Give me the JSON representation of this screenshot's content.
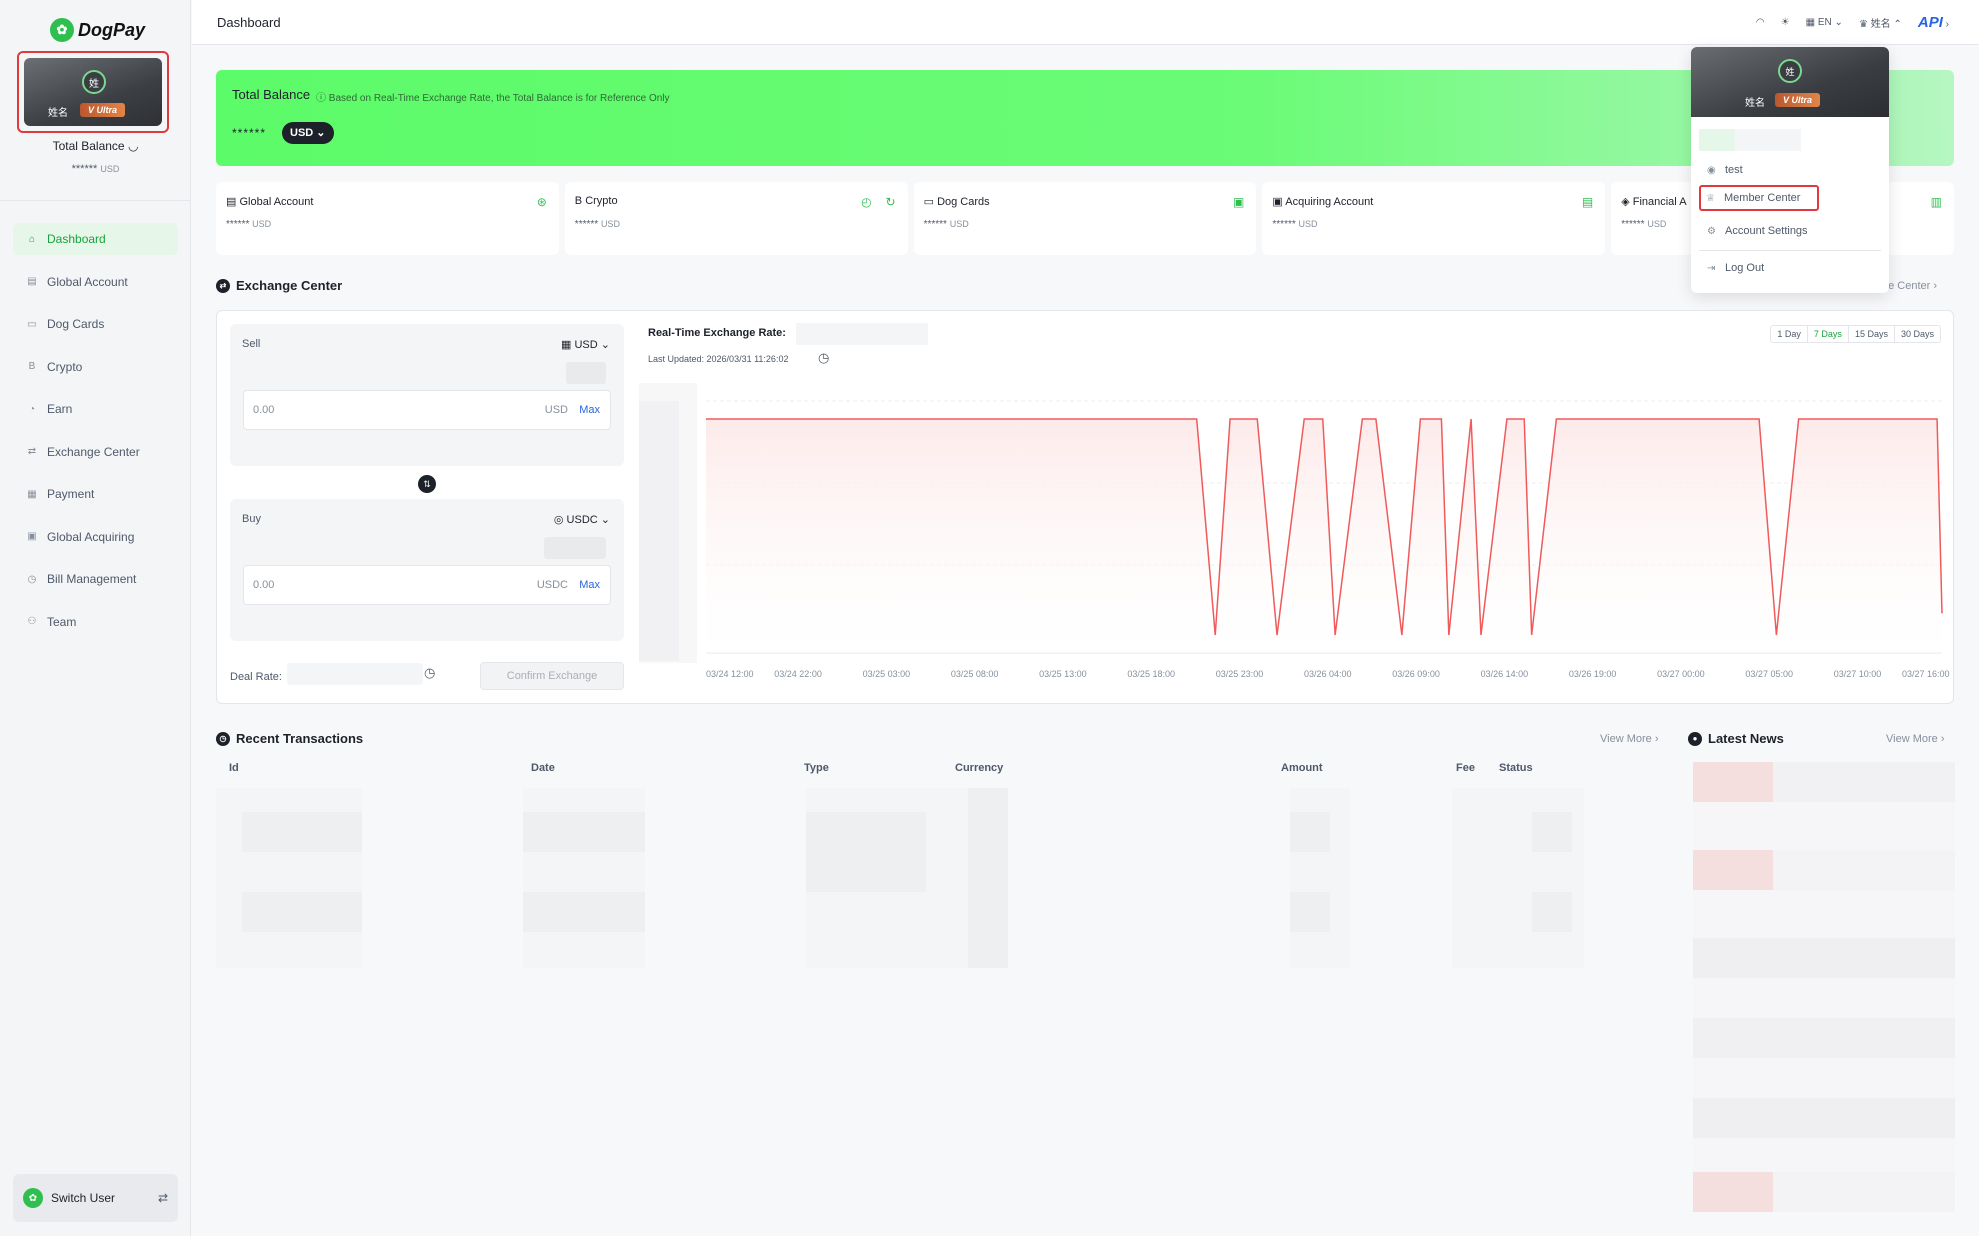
{
  "app": {
    "name": "DogPay",
    "api_label": "API"
  },
  "member_card": {
    "avatar_char": "姓",
    "name": "姓名",
    "tier": "Ultra",
    "tier_mark": "V"
  },
  "sidebar": {
    "total_label": "Total Balance",
    "total_value": "******",
    "total_currency": "USD",
    "items": [
      {
        "label": "Dashboard",
        "icon": "home-icon",
        "glyph": "⌂",
        "active": true
      },
      {
        "label": "Global Account",
        "icon": "bank-icon",
        "glyph": "▤"
      },
      {
        "label": "Dog Cards",
        "icon": "card-icon",
        "glyph": "▭"
      },
      {
        "label": "Crypto",
        "icon": "bitcoin-icon",
        "glyph": "B"
      },
      {
        "label": "Earn",
        "icon": "earn-icon",
        "glyph": "◔"
      },
      {
        "label": "Exchange Center",
        "icon": "exchange-icon",
        "glyph": "⇄"
      },
      {
        "label": "Payment",
        "icon": "payment-icon",
        "glyph": "▦"
      },
      {
        "label": "Global Acquiring",
        "icon": "acquiring-icon",
        "glyph": "▣"
      },
      {
        "label": "Bill Management",
        "icon": "bill-icon",
        "glyph": "◷"
      },
      {
        "label": "Team",
        "icon": "team-icon",
        "glyph": "⚇"
      }
    ],
    "switch_user": "Switch User"
  },
  "header": {
    "title": "Dashboard",
    "language": "EN",
    "user_name": "姓名"
  },
  "balance": {
    "title": "Total Balance",
    "note": "Based on Real-Time Exchange Rate, the Total Balance is for Reference Only",
    "value": "******",
    "currency": "USD"
  },
  "accounts": [
    {
      "title": "Global Account",
      "value": "******",
      "currency": "USD"
    },
    {
      "title": "Crypto",
      "value": "******",
      "currency": "USD"
    },
    {
      "title": "Dog Cards",
      "value": "******",
      "currency": "USD"
    },
    {
      "title": "Acquiring Account",
      "value": "******",
      "currency": "USD"
    },
    {
      "title": "Financial A",
      "value": "******",
      "currency": "USD"
    }
  ],
  "exchange": {
    "title": "Exchange Center",
    "link": "ge Center",
    "sell_label": "Sell",
    "sell_currency": "USD",
    "sell_placeholder": "0.00",
    "sell_unit": "USD",
    "buy_label": "Buy",
    "buy_currency": "USDC",
    "buy_placeholder": "0.00",
    "buy_unit": "USDC",
    "max_label": "Max",
    "deal_rate_label": "Deal Rate:",
    "confirm_label": "Confirm Exchange",
    "rate_title": "Real-Time Exchange Rate:",
    "last_updated": "Last Updated: 2026/03/31 11:26:02",
    "ranges": [
      "1 Day",
      "7 Days",
      "15 Days",
      "30 Days"
    ],
    "active_range": "7 Days"
  },
  "chart_data": {
    "type": "area",
    "x": [
      "03/24 12:00",
      "03/24 22:00",
      "03/25 03:00",
      "03/25 08:00",
      "03/25 13:00",
      "03/25 18:00",
      "03/25 23:00",
      "03/26 04:00",
      "03/26 09:00",
      "03/26 14:00",
      "03/26 19:00",
      "03/27 00:00",
      "03/27 05:00",
      "03/27 10:00",
      "03/27 16:00"
    ],
    "series_t": [
      0,
      0.397,
      0.412,
      0.424,
      0.446,
      0.462,
      0.484,
      0.499,
      0.509,
      0.531,
      0.542,
      0.563,
      0.578,
      0.595,
      0.601,
      0.619,
      0.627,
      0.648,
      0.662,
      0.668,
      0.688,
      0.852,
      0.866,
      0.884,
      0.996,
      1.0
    ],
    "series_v": [
      1,
      1,
      0,
      1,
      1,
      0,
      1,
      1,
      0,
      1,
      1,
      0,
      1,
      1,
      0,
      1,
      0,
      1,
      1,
      0,
      1,
      1,
      0,
      1,
      1,
      0.1
    ],
    "line_color": "#f05a5a",
    "fill_color": "#fde8e8",
    "grid": true
  },
  "transactions": {
    "title": "Recent Transactions",
    "view_more": "View More",
    "columns": [
      "Id",
      "Date",
      "Type",
      "Currency",
      "Amount",
      "Fee",
      "Status"
    ]
  },
  "news": {
    "title": "Latest News",
    "view_more": "View More"
  },
  "dropdown": {
    "items": [
      {
        "label": "test",
        "icon": "user-icon",
        "glyph": "◉"
      },
      {
        "label": "Member Center",
        "icon": "crown-icon",
        "glyph": "♕"
      },
      {
        "label": "Account Settings",
        "icon": "gear-icon",
        "glyph": "⚙"
      },
      {
        "label": "Log Out",
        "icon": "logout-icon",
        "glyph": "⇥"
      }
    ]
  }
}
